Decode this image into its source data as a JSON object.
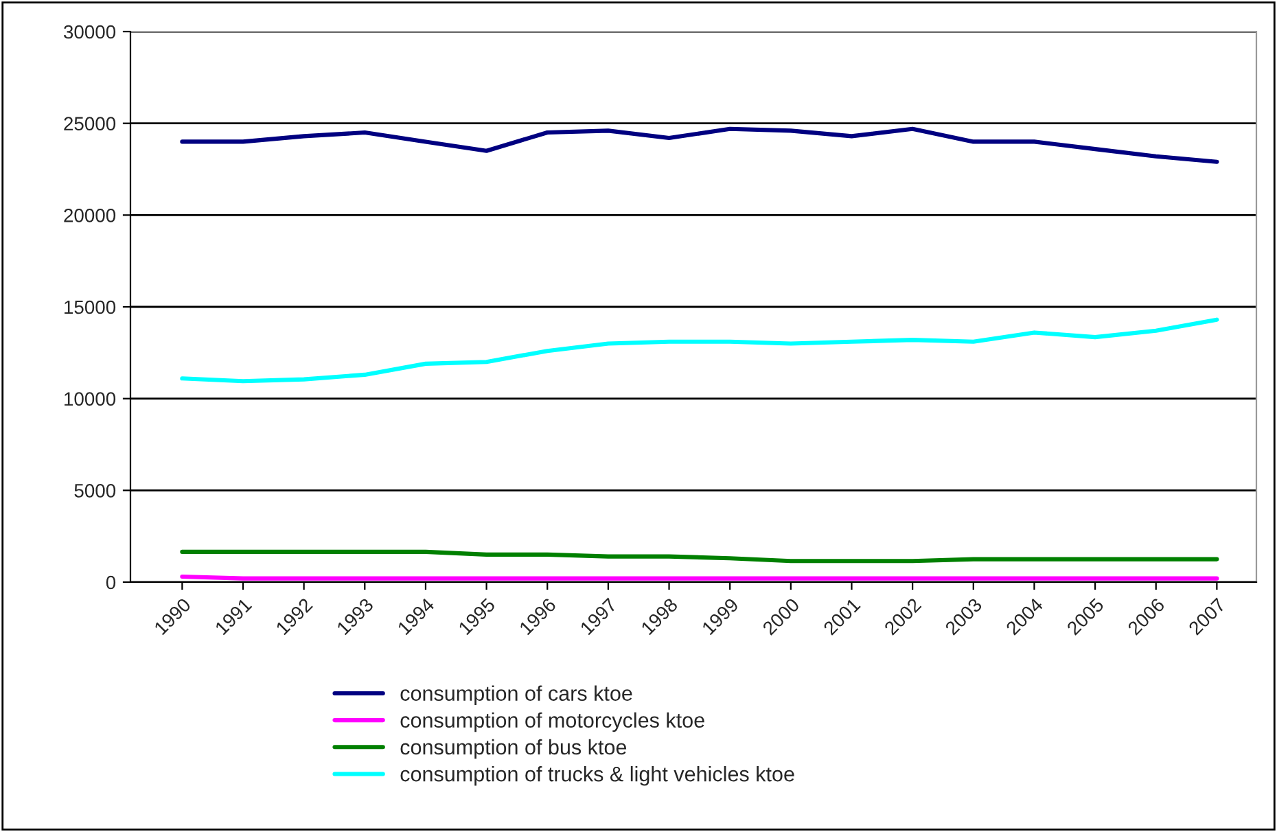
{
  "chart_data": {
    "type": "line",
    "categories": [
      "1990",
      "1991",
      "1992",
      "1993",
      "1994",
      "1995",
      "1996",
      "1997",
      "1998",
      "1999",
      "2000",
      "2001",
      "2002",
      "2003",
      "2004",
      "2005",
      "2006",
      "2007"
    ],
    "series": [
      {
        "name": "consumption of cars ktoe",
        "color": "#000080",
        "values": [
          24000,
          24000,
          24300,
          24500,
          24000,
          23500,
          24500,
          24600,
          24200,
          24700,
          24600,
          24300,
          24700,
          24000,
          24000,
          23600,
          23200,
          22900
        ]
      },
      {
        "name": "consumption of motorcycles ktoe",
        "color": "#ff00ff",
        "values": [
          300,
          200,
          200,
          200,
          200,
          200,
          200,
          200,
          200,
          200,
          200,
          200,
          200,
          200,
          200,
          200,
          200,
          200
        ]
      },
      {
        "name": "consumption of bus ktoe",
        "color": "#008000",
        "values": [
          1650,
          1650,
          1650,
          1650,
          1650,
          1500,
          1500,
          1400,
          1400,
          1300,
          1150,
          1150,
          1150,
          1250,
          1250,
          1250,
          1250,
          1250
        ]
      },
      {
        "name": "consumption of trucks & light vehicles ktoe",
        "color": "#00ffff",
        "values": [
          11100,
          10950,
          11050,
          11300,
          11900,
          12000,
          12600,
          13000,
          13100,
          13100,
          13000,
          13100,
          13200,
          13100,
          13600,
          13350,
          13700,
          14300
        ]
      }
    ],
    "ylim": [
      0,
      30000
    ],
    "yticks": [
      0,
      5000,
      10000,
      15000,
      20000,
      25000,
      30000
    ],
    "grid": "y",
    "legend": "bottom",
    "marker": "none",
    "line_style": "solid"
  }
}
